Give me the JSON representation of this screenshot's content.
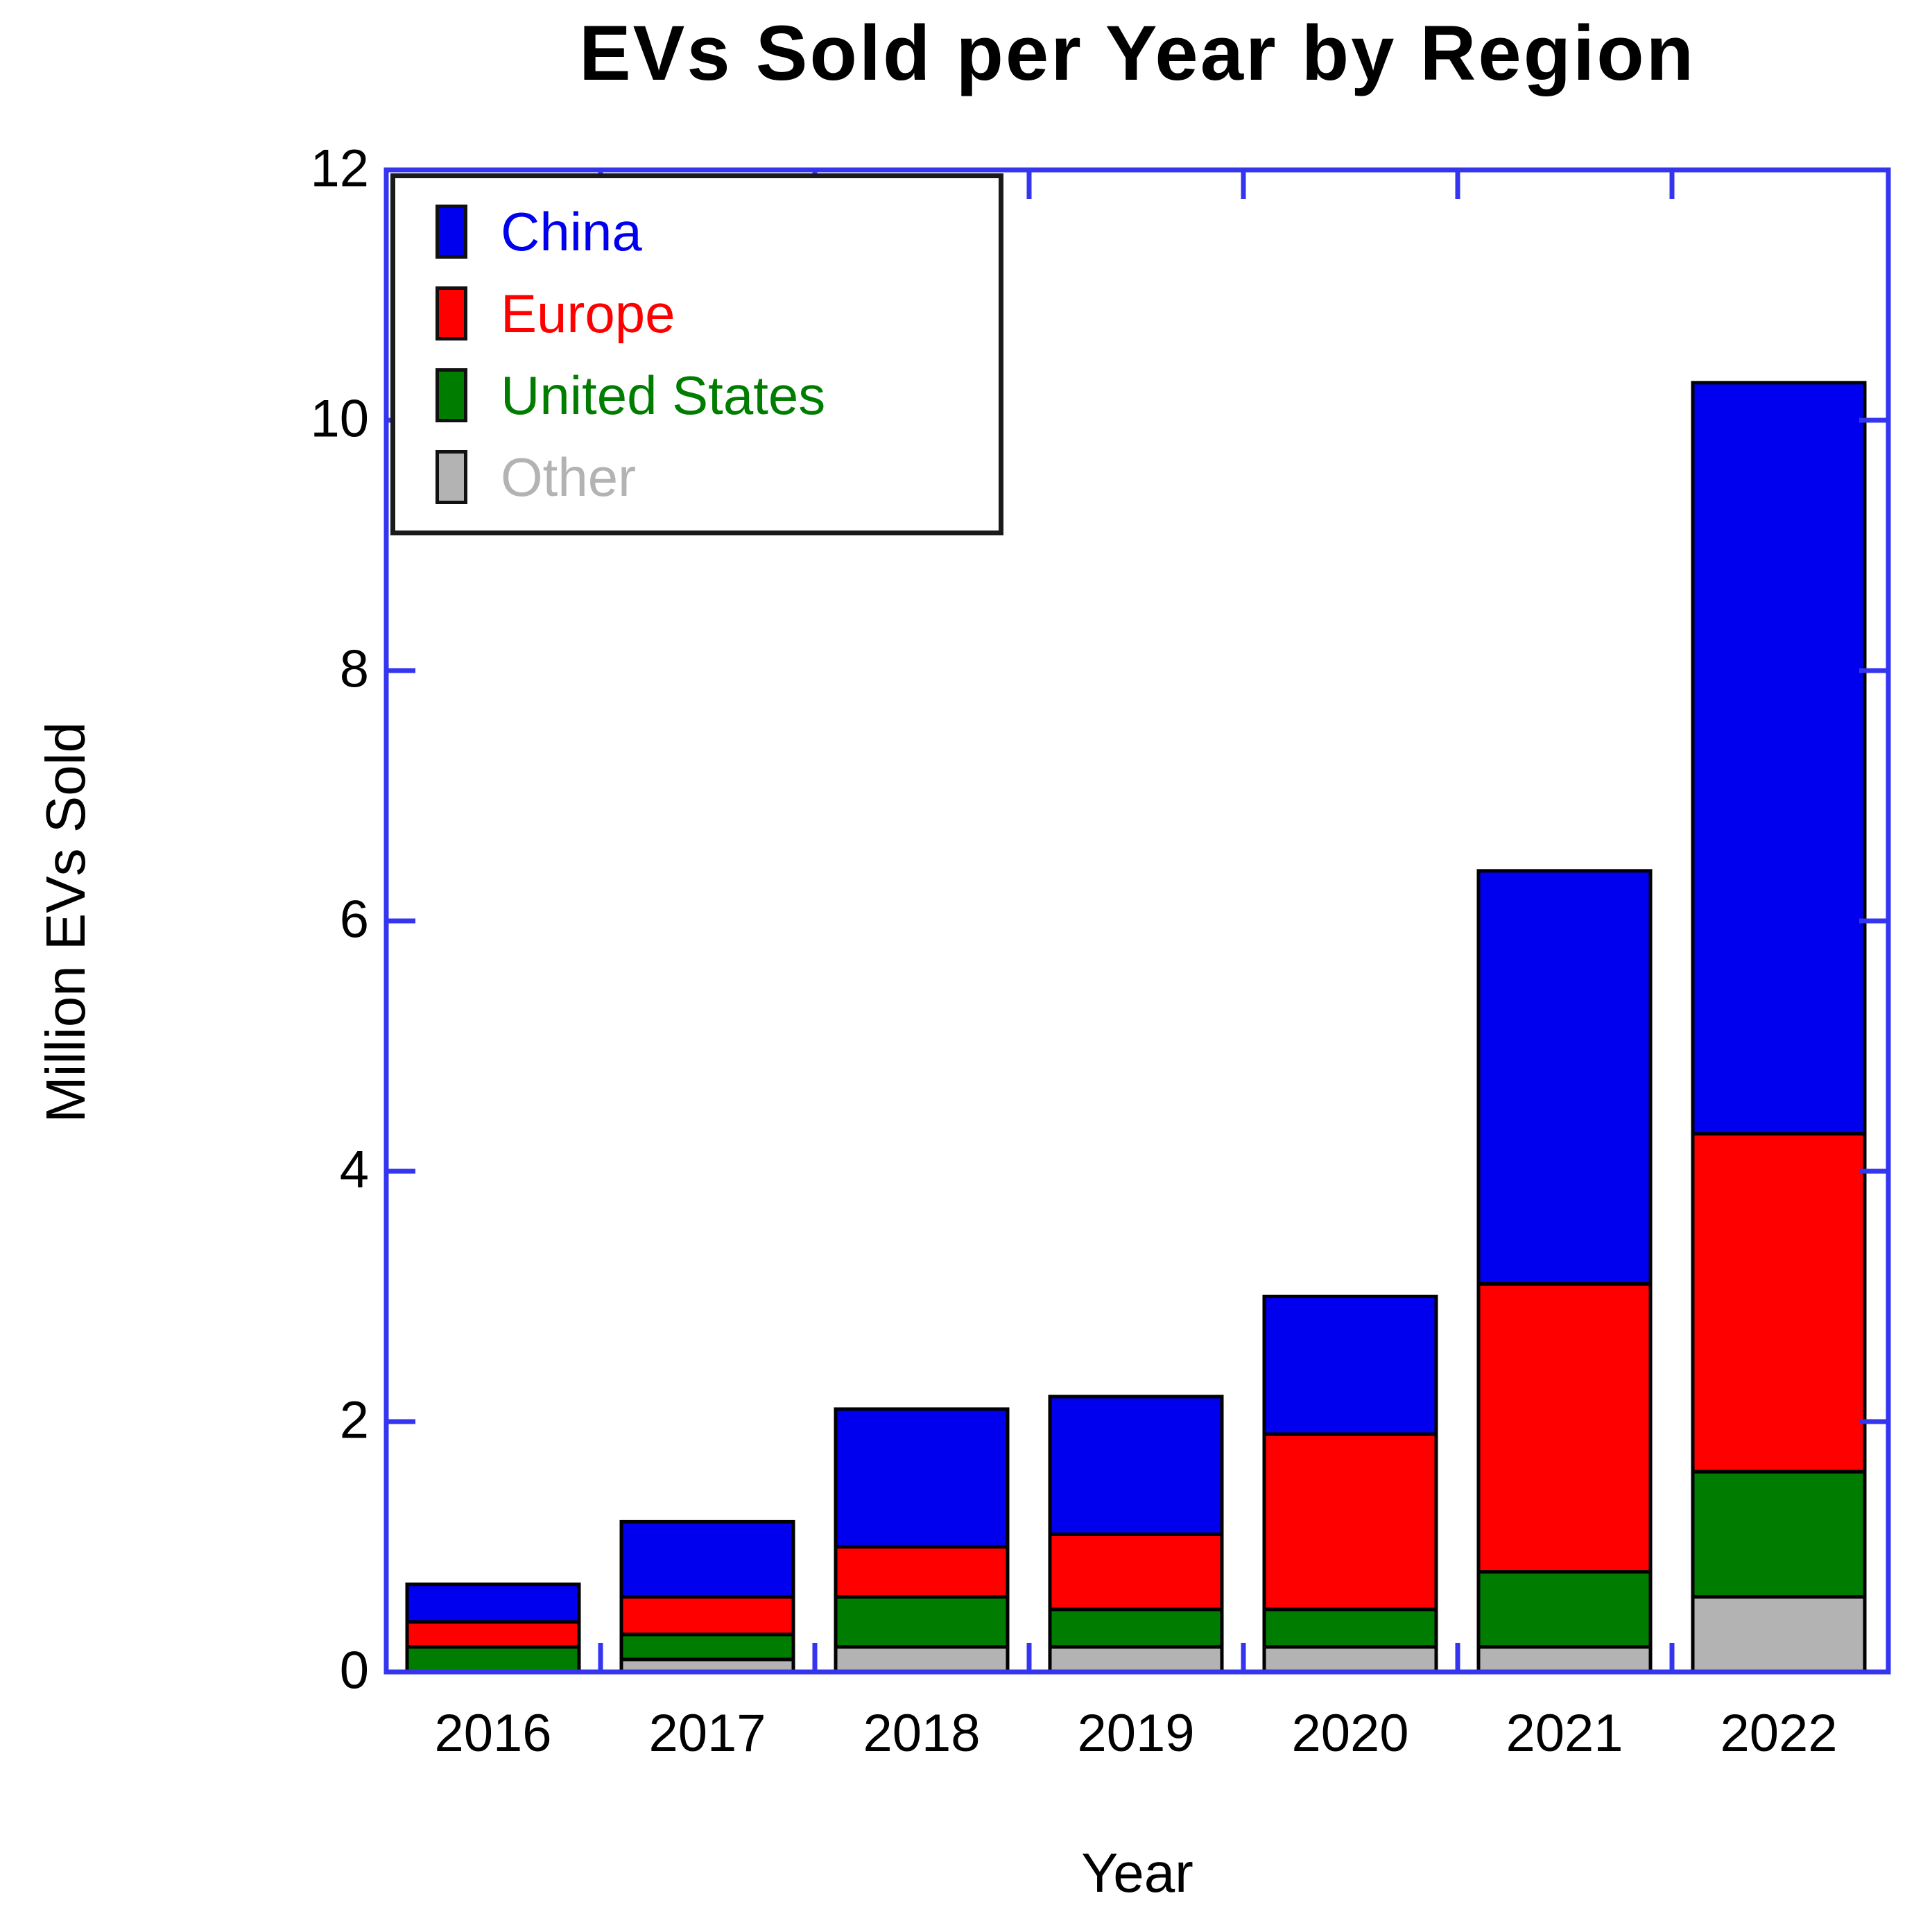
{
  "title": "EVs Sold per Year by Region",
  "x_axis": {
    "label": "Year",
    "tick_labels": [
      "2016",
      "2017",
      "2018",
      "2019",
      "2020",
      "2021",
      "2022"
    ]
  },
  "y_axis": {
    "label": "Million EVs Sold",
    "tick_labels": [
      "0",
      "2",
      "4",
      "6",
      "8",
      "10",
      "12"
    ],
    "range": [
      0,
      12
    ]
  },
  "frame_color": "#3535f0",
  "bar_border_color": "#000000",
  "legend": {
    "items": [
      {
        "label": "China",
        "color": "#0000ee"
      },
      {
        "label": "Europe",
        "color": "#ff0000"
      },
      {
        "label": "United States",
        "color": "#007d00"
      },
      {
        "label": "Other",
        "color": "#b3b3b3"
      }
    ]
  },
  "chart_data": {
    "type": "bar",
    "stacked": true,
    "title": "EVs Sold per Year by Region",
    "xlabel": "Year",
    "ylabel": "Million EVs Sold",
    "ylim": [
      0,
      12
    ],
    "grid": false,
    "legend_position": "upper-left",
    "categories": [
      "2016",
      "2017",
      "2018",
      "2019",
      "2020",
      "2021",
      "2022"
    ],
    "series": [
      {
        "name": "China",
        "color": "#0000ee",
        "values": [
          0.3,
          0.6,
          1.1,
          1.1,
          1.1,
          3.3,
          6.0
        ]
      },
      {
        "name": "Europe",
        "color": "#ff0000",
        "values": [
          0.2,
          0.3,
          0.4,
          0.6,
          1.4,
          2.3,
          2.7
        ]
      },
      {
        "name": "United States",
        "color": "#007d00",
        "values": [
          0.2,
          0.2,
          0.4,
          0.3,
          0.3,
          0.6,
          1.0
        ]
      },
      {
        "name": "Other",
        "color": "#b3b3b3",
        "values": [
          0.0,
          0.1,
          0.2,
          0.2,
          0.2,
          0.2,
          0.6
        ]
      }
    ],
    "stack_order_bottom_to_top": [
      "Other",
      "United States",
      "Europe",
      "China"
    ],
    "totals": [
      0.7,
      1.2,
      2.1,
      2.2,
      3.0,
      6.4,
      10.3
    ]
  }
}
